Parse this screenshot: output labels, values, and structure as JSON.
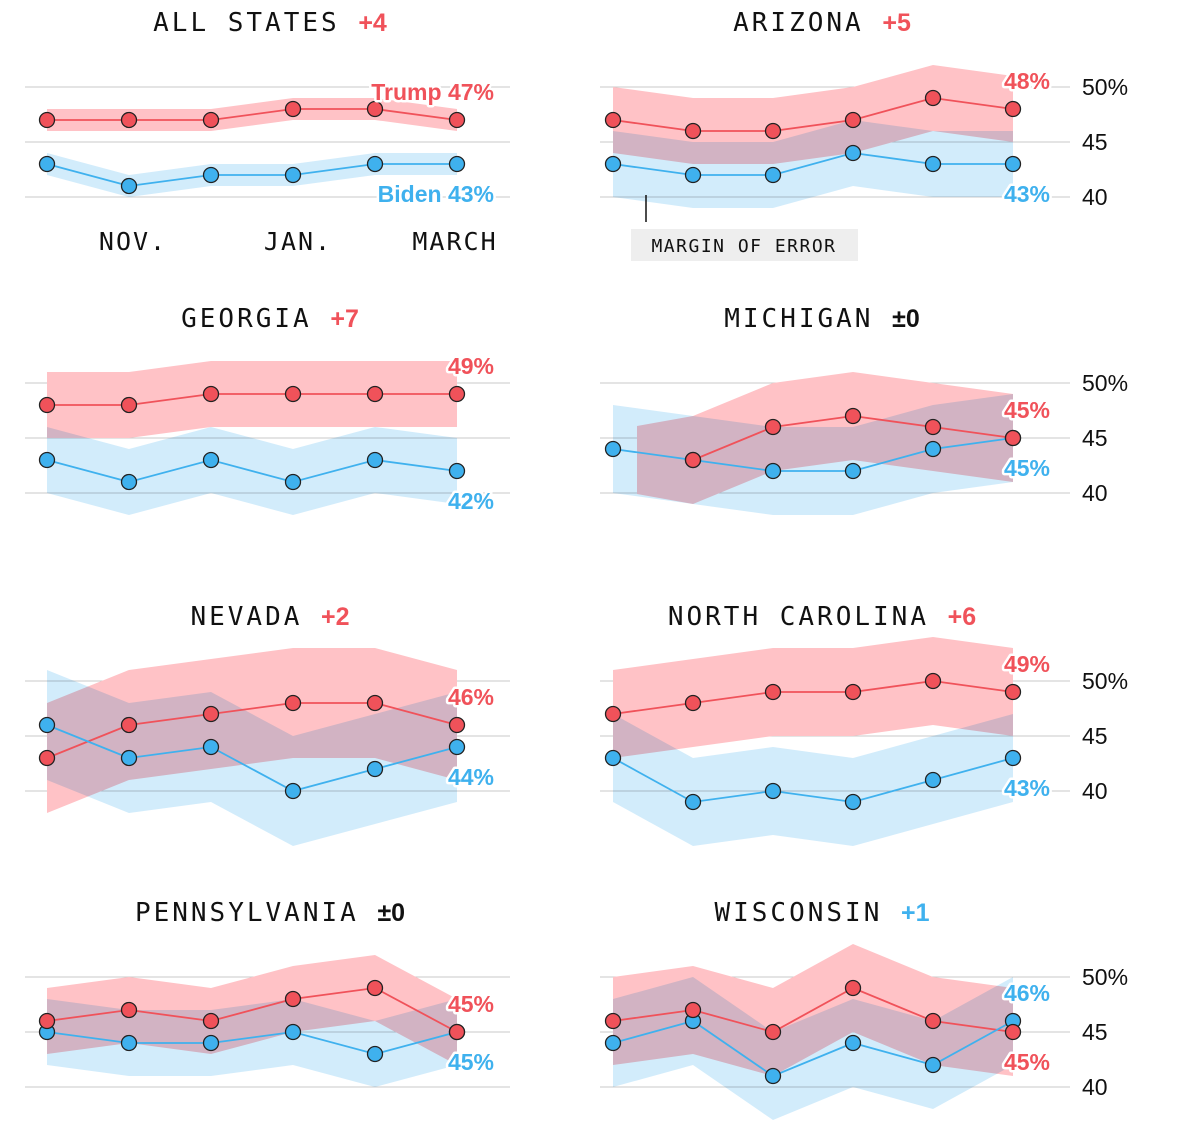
{
  "colors": {
    "trump": "#f0525a",
    "biden": "#3fb1ee",
    "trump_band": "#ffc2c6",
    "biden_band": "#c3e6fa",
    "overlap": "#c8a8c4",
    "neutral": "#111111",
    "grid": "#c8c8c8"
  },
  "x_ticks": [
    "NOV.",
    "JAN.",
    "MARCH"
  ],
  "y_ticks": [
    "50%",
    "45",
    "40"
  ],
  "annotation": "MARGIN OF ERROR",
  "chart_data": [
    {
      "type": "line",
      "title": "ALL STATES",
      "margin": "+4",
      "leader": "trump",
      "moe": 1,
      "ylim": [
        40,
        50
      ],
      "series": [
        {
          "name": "Trump",
          "label": "Trump 47%",
          "values": [
            47,
            47,
            47,
            48,
            48,
            47
          ]
        },
        {
          "name": "Biden",
          "label": "Biden 43%",
          "values": [
            43,
            41,
            42,
            42,
            43,
            43
          ]
        }
      ]
    },
    {
      "type": "line",
      "title": "ARIZONA",
      "margin": "+5",
      "leader": "trump",
      "moe": 3,
      "ylim": [
        40,
        50
      ],
      "series": [
        {
          "label": "48%",
          "values": [
            47,
            46,
            46,
            47,
            49,
            48
          ]
        },
        {
          "label": "43%",
          "values": [
            43,
            42,
            42,
            44,
            43,
            43
          ]
        }
      ]
    },
    {
      "type": "line",
      "title": "GEORGIA",
      "margin": "+7",
      "leader": "trump",
      "moe": 3,
      "ylim": [
        40,
        50
      ],
      "series": [
        {
          "label": "49%",
          "values": [
            48,
            48,
            49,
            49,
            49,
            49
          ]
        },
        {
          "label": "42%",
          "values": [
            43,
            41,
            43,
            41,
            43,
            42
          ]
        }
      ]
    },
    {
      "type": "line",
      "title": "MICHIGAN",
      "margin": "±0",
      "leader": "tie",
      "moe": 4,
      "ylim": [
        40,
        50
      ],
      "series": [
        {
          "label": "45%",
          "values": [
            null,
            43,
            46,
            47,
            46,
            45
          ]
        },
        {
          "label": "45%",
          "values": [
            44,
            43,
            42,
            42,
            44,
            45
          ]
        }
      ]
    },
    {
      "type": "line",
      "title": "NEVADA",
      "margin": "+2",
      "leader": "trump",
      "moe": 5,
      "ylim": [
        40,
        50
      ],
      "series": [
        {
          "label": "46%",
          "values": [
            43,
            46,
            47,
            48,
            48,
            46
          ]
        },
        {
          "label": "44%",
          "values": [
            46,
            43,
            44,
            40,
            42,
            44
          ]
        }
      ]
    },
    {
      "type": "line",
      "title": "NORTH CAROLINA",
      "margin": "+6",
      "leader": "trump",
      "moe": 4,
      "ylim": [
        40,
        50
      ],
      "series": [
        {
          "label": "49%",
          "values": [
            47,
            48,
            49,
            49,
            50,
            49
          ]
        },
        {
          "label": "43%",
          "values": [
            43,
            39,
            40,
            39,
            41,
            43
          ]
        }
      ]
    },
    {
      "type": "line",
      "title": "PENNSYLVANIA",
      "margin": "±0",
      "leader": "tie",
      "moe": 3,
      "ylim": [
        40,
        50
      ],
      "series": [
        {
          "label": "45%",
          "values": [
            46,
            47,
            46,
            48,
            49,
            45
          ]
        },
        {
          "label": "45%",
          "values": [
            45,
            44,
            44,
            45,
            43,
            45
          ]
        }
      ]
    },
    {
      "type": "line",
      "title": "WISCONSIN",
      "margin": "+1",
      "leader": "biden",
      "moe": 4,
      "ylim": [
        40,
        50
      ],
      "series": [
        {
          "label": "45%",
          "values": [
            46,
            47,
            45,
            49,
            46,
            45
          ]
        },
        {
          "label": "46%",
          "values": [
            44,
            46,
            41,
            44,
            42,
            46
          ]
        }
      ]
    }
  ]
}
